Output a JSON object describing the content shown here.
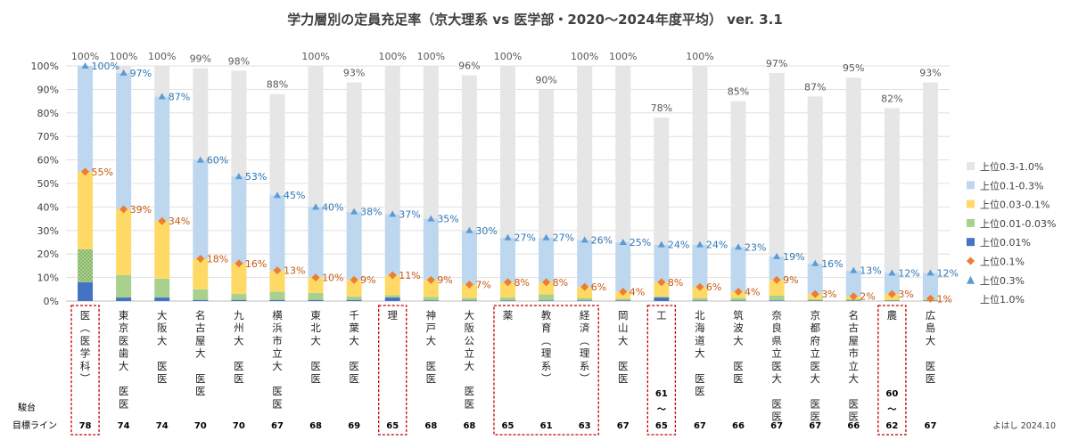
{
  "chart_data": {
    "type": "bar",
    "title": "学力層別の定員充足率（京大理系 vs 医学部・2020〜2024年度平均） ver. 3.1",
    "ylim": [
      0,
      100
    ],
    "y_ticks": [
      "0%",
      "10%",
      "20%",
      "30%",
      "40%",
      "50%",
      "60%",
      "70%",
      "80%",
      "90%",
      "100%"
    ],
    "categories": [
      "医（医学科）",
      "東京医歯大 医医",
      "大阪大 医医",
      "名古屋大 医医",
      "九州大 医医",
      "横浜市立大 医医",
      "東北大 医医",
      "千葉大 医医",
      "理",
      "神戸大 医医",
      "大阪公立大 医医",
      "薬",
      "教育（理系）",
      "経済（理系）",
      "岡山大 医医",
      "工",
      "北海道大 医医",
      "筑波大 医医",
      "奈良県立医大 医医",
      "京都府立医大 医医",
      "名古屋市立大 医医",
      "農",
      "広島大 医医"
    ],
    "series": [
      {
        "name": "上位0.01%",
        "color": "#4472c4",
        "values": [
          8,
          1.5,
          1.5,
          0.5,
          0.5,
          0.5,
          0.5,
          0.5,
          1.5,
          0.3,
          0.3,
          0.3,
          0.3,
          0.3,
          0.3,
          1.5,
          0.3,
          0.3,
          0.3,
          0.2,
          0.2,
          0.2,
          0.2
        ]
      },
      {
        "name": "上位0.01-0.03%",
        "color": "#a9d18e",
        "values": [
          14,
          9.5,
          8,
          4.5,
          2.5,
          3.5,
          3,
          1.5,
          1,
          1.5,
          1,
          1.2,
          2.5,
          1,
          0.7,
          0.5,
          1,
          1,
          2,
          0.6,
          0.6,
          0.3,
          0.3
        ]
      },
      {
        "name": "上位0.03-0.1%",
        "color": "#ffd966",
        "values": [
          33,
          28,
          24.5,
          13,
          13,
          9,
          6.5,
          7,
          8.5,
          7.2,
          5.7,
          6.5,
          5.2,
          4.7,
          3,
          6,
          4.7,
          2.7,
          6.7,
          2.2,
          1.2,
          2.5,
          0.5
        ]
      },
      {
        "name": "上位0.1-0.3%",
        "color": "#bdd7ee",
        "values": [
          45,
          58,
          53,
          42,
          37,
          32,
          30,
          29,
          26,
          26,
          23,
          19,
          19,
          20,
          21,
          16,
          18,
          19,
          10,
          13,
          11,
          9,
          11
        ]
      },
      {
        "name": "上位0.3-1.0%",
        "color": "#e7e6e6",
        "values": [
          0,
          3,
          13,
          39,
          45,
          43,
          60,
          55,
          63,
          65,
          66,
          73,
          63,
          74,
          75,
          54,
          76,
          62,
          78,
          71,
          82,
          70,
          81
        ]
      }
    ],
    "totals": [
      "100%",
      "100%",
      "100%",
      "99%",
      "98%",
      "88%",
      "100%",
      "93%",
      "100%",
      "100%",
      "96%",
      "100%",
      "90%",
      "100%",
      "100%",
      "78%",
      "100%",
      "85%",
      "97%",
      "87%",
      "95%",
      "82%",
      "93%"
    ],
    "cum_0_1": [
      55,
      39,
      34,
      18,
      16,
      13,
      10,
      9,
      11,
      9,
      7,
      8,
      8,
      6,
      4,
      8,
      6,
      4,
      9,
      3,
      2,
      3,
      1
    ],
    "cum_0_1_labels": [
      "55%",
      "39%",
      "34%",
      "18%",
      "16%",
      "13%",
      "10%",
      "9%",
      "11%",
      "9%",
      "7%",
      "8%",
      "8%",
      "6%",
      "4%",
      "8%",
      "6%",
      "4%",
      "9%",
      "3%",
      "2%",
      "3%",
      "1%"
    ],
    "cum_0_3": [
      100,
      97,
      87,
      60,
      53,
      45,
      40,
      38,
      37,
      35,
      30,
      27,
      27,
      26,
      25,
      24,
      24,
      23,
      19,
      16,
      13,
      12,
      12
    ],
    "cum_0_3_labels": [
      "100%",
      "97%",
      "87%",
      "60%",
      "53%",
      "45%",
      "40%",
      "38%",
      "37%",
      "35%",
      "30%",
      "27%",
      "27%",
      "26%",
      "25%",
      "24%",
      "24%",
      "23%",
      "19%",
      "16%",
      "13%",
      "12%",
      "12%"
    ],
    "legend": [
      {
        "label": "上位0.3-1.0%",
        "kind": "box",
        "color": "#e7e6e6"
      },
      {
        "label": "上位0.1-0.3%",
        "kind": "box",
        "color": "#bdd7ee"
      },
      {
        "label": "上位0.03-0.1%",
        "kind": "box",
        "color": "#ffd966"
      },
      {
        "label": "上位0.01-0.03%",
        "kind": "box",
        "color": "#a9d18e"
      },
      {
        "label": "上位0.01%",
        "kind": "box",
        "color": "#4472c4"
      },
      {
        "label": "上位0.1%",
        "kind": "diamond",
        "color": "#ed7d31"
      },
      {
        "label": "上位0.3%",
        "kind": "triangle",
        "color": "#5b9bd5"
      },
      {
        "label": "上位1.0%",
        "kind": "none",
        "color": ""
      }
    ],
    "grid": true,
    "legend_placement": "right"
  },
  "highlight_groups": [
    [
      0,
      0
    ],
    [
      8,
      8
    ],
    [
      11,
      13
    ],
    [
      15,
      15
    ],
    [
      21,
      21
    ]
  ],
  "highlight_color": "#c00000",
  "bottom": {
    "row1_label": "駿台",
    "row2_label": "目標ライン",
    "target_line": [
      "78",
      "74",
      "74",
      "70",
      "70",
      "67",
      "68",
      "69",
      "65",
      "68",
      "68",
      "65",
      "61",
      "63",
      "67",
      "65",
      "67",
      "66",
      "67",
      "67",
      "66",
      "62",
      "67"
    ],
    "range_note": [
      {
        "index": 15,
        "top": "61",
        "mid": "〜"
      },
      {
        "index": 21,
        "top": "60",
        "mid": "〜"
      }
    ]
  },
  "credit": "よはし 2024.10"
}
